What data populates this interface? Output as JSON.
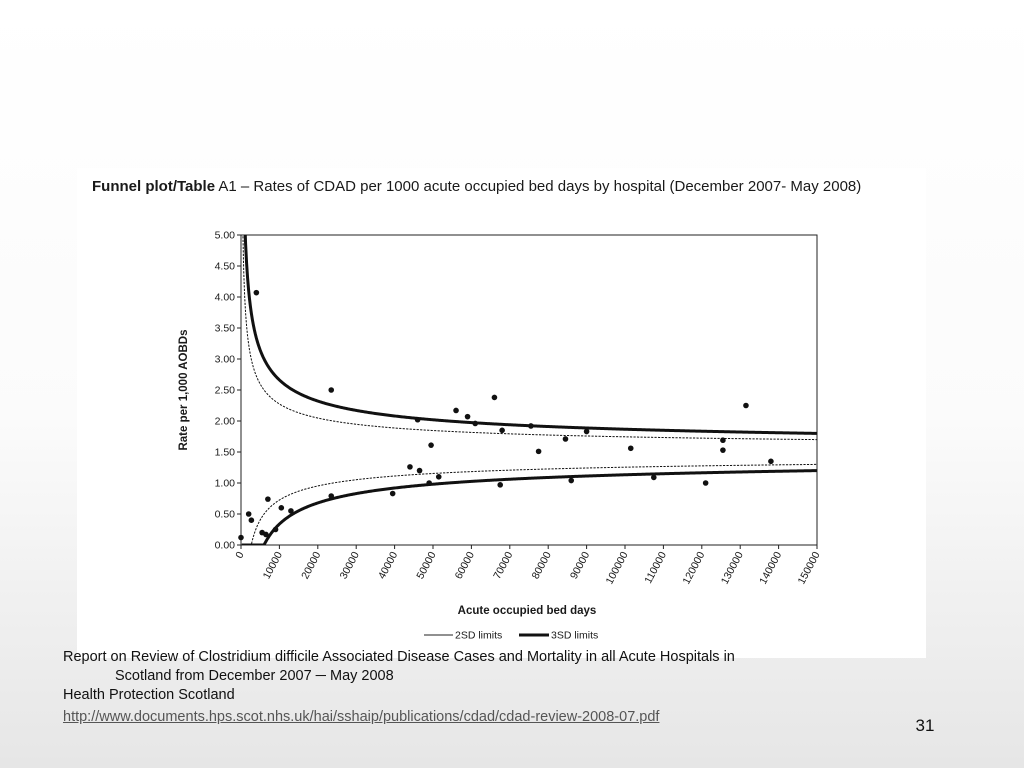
{
  "figure": {
    "title_bold": "Funnel plot/Table",
    "title_rest": " A1 – Rates of CDAD per 1000 acute occupied bed days by hospital (December 2007- May 2008)"
  },
  "chart_data": {
    "type": "scatter",
    "title": "Funnel plot/Table A1 – Rates of CDAD per 1000 acute occupied bed days by hospital (December 2007- May 2008)",
    "xlabel": "Acute occupied bed days",
    "ylabel": "Rate per 1,000  AOBDs",
    "xlim": [
      0,
      150000
    ],
    "ylim": [
      0,
      5
    ],
    "x_ticks": [
      "0",
      "10000",
      "20000",
      "30000",
      "40000",
      "50000",
      "60000",
      "70000",
      "80000",
      "90000",
      "100000",
      "110000",
      "120000",
      "130000",
      "140000",
      "150000"
    ],
    "y_ticks": [
      "0.00",
      "0.50",
      "1.00",
      "1.50",
      "2.00",
      "2.50",
      "3.00",
      "3.50",
      "4.00",
      "4.50",
      "5.00"
    ],
    "legend_position": "bottom",
    "grid": false,
    "colors": {
      "points": "#111111",
      "limits": "#111111"
    },
    "mean_rate": 1.5,
    "series": [
      {
        "name": "2SD limits",
        "style": "dashed-thin",
        "z": 2
      },
      {
        "name": "3SD limits",
        "style": "solid-thick",
        "z": 3
      }
    ],
    "points": [
      [
        0,
        0.12
      ],
      [
        2000,
        0.5
      ],
      [
        2700,
        0.4
      ],
      [
        4000,
        4.07
      ],
      [
        5500,
        0.2
      ],
      [
        6500,
        0.17
      ],
      [
        7000,
        0.74
      ],
      [
        9000,
        0.25
      ],
      [
        10500,
        0.6
      ],
      [
        13000,
        0.55
      ],
      [
        23500,
        2.5
      ],
      [
        23500,
        0.79
      ],
      [
        39500,
        0.83
      ],
      [
        44000,
        1.26
      ],
      [
        46000,
        2.02
      ],
      [
        46500,
        1.2
      ],
      [
        49000,
        1.0
      ],
      [
        49500,
        1.61
      ],
      [
        51500,
        1.1
      ],
      [
        56000,
        2.17
      ],
      [
        59000,
        2.07
      ],
      [
        61000,
        1.96
      ],
      [
        66000,
        2.38
      ],
      [
        67500,
        0.97
      ],
      [
        68000,
        1.85
      ],
      [
        75500,
        1.92
      ],
      [
        77500,
        1.51
      ],
      [
        84500,
        1.71
      ],
      [
        86000,
        1.04
      ],
      [
        90000,
        1.83
      ],
      [
        101500,
        1.56
      ],
      [
        107500,
        1.09
      ],
      [
        121000,
        1.0
      ],
      [
        125500,
        1.69
      ],
      [
        125500,
        1.53
      ],
      [
        131500,
        2.25
      ],
      [
        138000,
        1.35
      ]
    ]
  },
  "caption": {
    "line1": "Report on Review of Clostridium difficile Associated Disease Cases and Mortality in all Acute Hospitals in",
    "line2": "Scotland from December 2007 ─ May 2008",
    "line3": "Health Protection Scotland",
    "link": "http://www.documents.hps.scot.nhs.uk/hai/sshaip/publications/cdad/cdad-review-2008-07.pdf"
  },
  "slide_number": "31"
}
